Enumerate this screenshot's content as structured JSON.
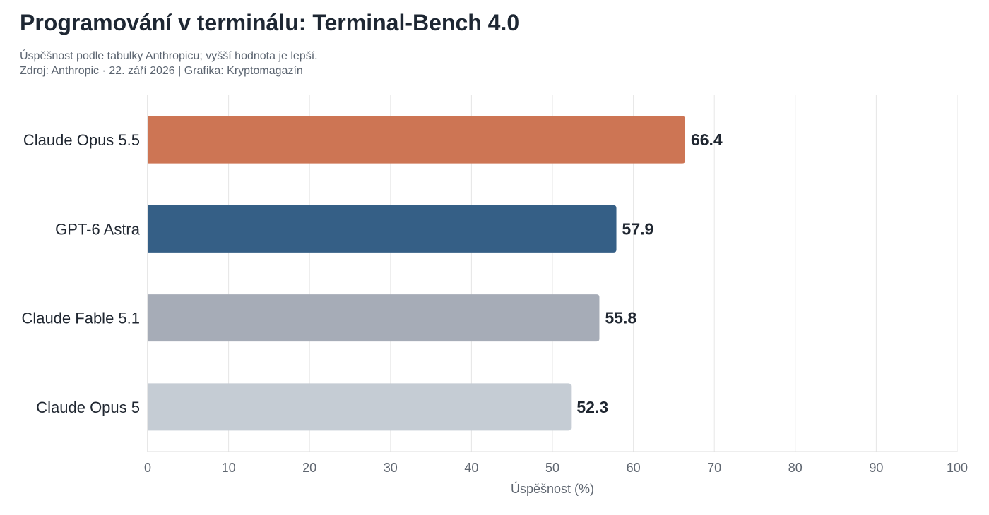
{
  "header": {
    "title": "Programování v terminálu: Terminal-Bench 4.0",
    "subtitle_line1": "Úspěšnost podle tabulky Anthropicu; vyšší hodnota je lepší.",
    "subtitle_line2": "Zdroj: Anthropic · 22. září 2026 | Grafika: Kryptomagazín"
  },
  "chart_data": {
    "type": "bar",
    "orientation": "horizontal",
    "title": "Programování v terminálu: Terminal-Bench 4.0",
    "categories": [
      "Claude Opus 5.5",
      "GPT-6 Astra",
      "Claude Fable 5.1",
      "Claude Opus 5"
    ],
    "values": [
      66.4,
      57.9,
      55.8,
      52.3
    ],
    "data_labels": [
      "66.4",
      "57.9",
      "55.8",
      "52.3"
    ],
    "bar_colors": [
      "#cd7554",
      "#355f86",
      "#a6acb7",
      "#c5ccd4"
    ],
    "xlabel": "Úspěšnost (%)",
    "ylabel": "",
    "xlim": [
      0,
      100
    ],
    "x_ticks": [
      0,
      10,
      20,
      30,
      40,
      50,
      60,
      70,
      80,
      90,
      100
    ],
    "grid": true,
    "legend": "none"
  }
}
